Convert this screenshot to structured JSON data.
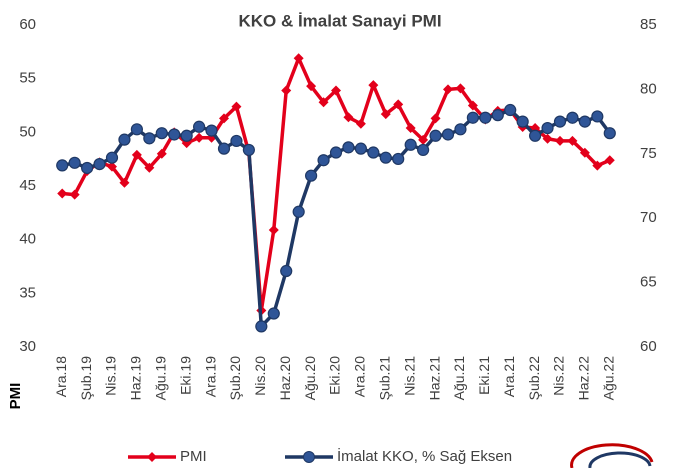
{
  "chart_data": {
    "type": "line",
    "title": "KKO & İmalat Sanayi PMI",
    "ylabel": "PMI",
    "categories": [
      "Ara.18",
      null,
      "Şub.19",
      null,
      "Nis.19",
      null,
      "Haz.19",
      null,
      "Ağu.19",
      null,
      "Eki.19",
      null,
      "Ara.19",
      null,
      "Şub.20",
      null,
      "Nis.20",
      null,
      "Haz.20",
      null,
      "Ağu.20",
      null,
      "Eki.20",
      null,
      "Ara.20",
      null,
      "Şub.21",
      null,
      "Nis.21",
      null,
      "Haz.21",
      null,
      "Ağu.21",
      null,
      "Eki.21",
      null,
      "Ara.21",
      null,
      "Şub.22",
      null,
      "Nis.22",
      null,
      "Haz.22",
      null,
      "Ağu.22"
    ],
    "series": [
      {
        "name": "PMI",
        "color": "#e3001b",
        "marker": "diamond",
        "values": [
          44.3,
          44.2,
          46.4,
          47.2,
          46.8,
          45.3,
          47.9,
          46.7,
          48.0,
          50.0,
          49.0,
          49.5,
          49.5,
          51.3,
          52.4,
          48.1,
          33.4,
          40.9,
          53.9,
          56.9,
          54.3,
          52.8,
          53.9,
          51.4,
          50.8,
          54.4,
          51.7,
          52.6,
          50.4,
          49.3,
          51.3,
          54.0,
          54.1,
          52.5,
          51.2,
          52.0,
          52.1,
          50.5,
          50.4,
          49.4,
          49.2,
          49.2,
          48.1,
          46.9,
          47.4
        ]
      },
      {
        "name": "İmalat KKO, % Sağ Eksen",
        "color": "#1f3864",
        "marker": "circle",
        "marker_color": "#2f5597",
        "axis": "y2",
        "values": [
          74.1,
          74.3,
          73.9,
          74.2,
          74.7,
          76.1,
          76.9,
          76.2,
          76.6,
          76.5,
          76.4,
          77.1,
          76.8,
          75.4,
          76.0,
          75.3,
          61.6,
          62.6,
          65.9,
          70.5,
          73.3,
          74.5,
          75.1,
          75.5,
          75.4,
          75.1,
          74.7,
          74.6,
          75.7,
          75.3,
          76.4,
          76.5,
          76.9,
          77.8,
          77.8,
          78.0,
          78.4,
          77.5,
          76.4,
          77.0,
          77.5,
          77.8,
          77.5,
          77.9,
          76.6
        ]
      }
    ],
    "ylim": [
      30,
      60
    ],
    "yticks": [
      30,
      35,
      40,
      45,
      50,
      55,
      60
    ],
    "y2lim": [
      60,
      85
    ],
    "y2ticks": [
      60,
      65,
      70,
      75,
      80,
      85
    ],
    "legend": "bottom"
  }
}
